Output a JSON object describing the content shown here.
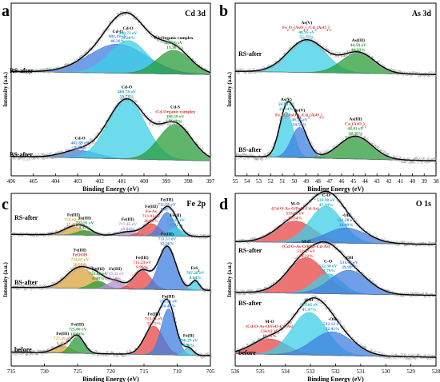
{
  "chart_data": [
    {
      "type": "area",
      "panel": "a",
      "element": "Cd 3d",
      "xlabel": "Binding Energy (eV)",
      "ylabel": "Intensity (a.u.)",
      "xlim": [
        406,
        397
      ],
      "x_ticks": [
        "406",
        "405",
        "404",
        "403",
        "402",
        "401",
        "400",
        "399",
        "398",
        "397"
      ],
      "stacks": [
        {
          "name": "RS-after",
          "peaks": [
            {
              "label": "Cd-O",
              "energy": "401.19 eV",
              "share": "46.26%",
              "center": 401.19,
              "height": 0.55,
              "width": 1.3,
              "color": "#3f7fe0"
            },
            {
              "label": "Cd-O",
              "energy": "400.72 eV",
              "share": "34.20%",
              "center": 400.72,
              "height": 0.62,
              "width": 0.85,
              "color": "#3ccfe6"
            },
            {
              "label": "Cd-Organic complex",
              "energy": "398.66 eV",
              "share": "19.36%",
              "center": 398.66,
              "height": 0.45,
              "width": 0.75,
              "color": "#2a9e3a"
            }
          ]
        },
        {
          "name": "BS-after",
          "peaks": [
            {
              "label": "Cd-O",
              "energy": "402.89 eV",
              "share": "7.45%",
              "center": 402.89,
              "height": 0.1,
              "width": 0.8,
              "color": "#3f7fe0"
            },
            {
              "label": "Cd-O",
              "energy": "400.78 eV",
              "share": "50.77%",
              "center": 400.78,
              "height": 0.8,
              "width": 0.85,
              "color": "#3ccfe6"
            },
            {
              "label": "Cd-S",
              "label2": "/Cd-Organic complex",
              "energy": "398.59 eV",
              "share": "41.78%",
              "center": 398.59,
              "height": 0.48,
              "width": 0.75,
              "color": "#2a9e3a"
            }
          ]
        }
      ]
    },
    {
      "type": "area",
      "panel": "b",
      "element": "As 3d",
      "xlabel": "Binding Energy (eV)",
      "ylabel": "Intensity (a.u.)",
      "xlim": [
        55,
        38
      ],
      "x_ticks": [
        "55",
        "54",
        "53",
        "52",
        "51",
        "50",
        "49",
        "48",
        "47",
        "46",
        "45",
        "44",
        "43",
        "42",
        "41",
        "40",
        "39",
        "38"
      ],
      "stacks": [
        {
          "name": "RS-after",
          "peaks": [
            {
              "label": "As(V)",
              "label2": "Fe2O3(AsO4)3/Cd3(AsO4)2",
              "energy": "48.95 eV",
              "share": "55.77%",
              "center": 48.95,
              "height": 0.6,
              "width": 1.6,
              "color": "#3ccfe6"
            },
            {
              "label": "As(III)",
              "energy": "44.58 eV",
              "share": "44.23%",
              "center": 44.58,
              "height": 0.38,
              "width": 1.4,
              "color": "#2a9e3a"
            }
          ]
        },
        {
          "name": "BS-after",
          "peaks": [
            {
              "label": "As(V)",
              "energy": "50.68 eV",
              "share": "21.14%",
              "center": 50.68,
              "height": 0.6,
              "width": 0.6,
              "color": "#3ccfe6"
            },
            {
              "label": "As(V)",
              "label2": "Fe2O3(AsO4)3/Cd3(AsO4)2",
              "energy": "49.55 eV",
              "share": "24.50%",
              "center": 49.55,
              "height": 0.4,
              "width": 0.7,
              "color": "#3f7fe0"
            },
            {
              "label": "As(III)",
              "label2": "Ca3(AsO3)2",
              "energy": "44.81 eV",
              "share": "54.35%",
              "center": 44.81,
              "height": 0.3,
              "width": 1.4,
              "color": "#2a9e3a"
            }
          ]
        }
      ]
    },
    {
      "type": "area",
      "panel": "c",
      "element": "Fe 2p",
      "xlabel": "Binding Energy (eV)",
      "ylabel": "Intensity (a.u.)",
      "xlim": [
        735,
        705
      ],
      "x_ticks": [
        "735",
        "730",
        "725",
        "720",
        "715",
        "710",
        "705"
      ],
      "stacks": [
        {
          "name": "RS-after",
          "peaks": [
            {
              "label": "Fe(III)",
              "energy": "725.62 eV",
              "share": "15.45%",
              "center": 725.62,
              "height": 0.2,
              "width": 1.6,
              "color": "#d9a43a"
            },
            {
              "label": "Fe(III)",
              "energy": "723.91 eV",
              "share": "8.41%",
              "center": 723.91,
              "height": 0.12,
              "width": 1.2,
              "color": "#2a9e3a"
            },
            {
              "label": "Fe(III)",
              "energy": "717.45 eV",
              "share": "10.04%",
              "center": 717.45,
              "height": 0.1,
              "width": 1.4,
              "color": "#b68fdc"
            },
            {
              "label": "Fe(III)",
              "label2": "Fe-As",
              "energy": "713.91 eV",
              "share": "26.08%",
              "center": 713.91,
              "height": 0.32,
              "width": 1.3,
              "color": "#e84545"
            },
            {
              "label": "Fe(III)",
              "energy": "711.56 eV",
              "share": "9.85%",
              "center": 711.56,
              "height": 0.62,
              "width": 1.1,
              "color": "#3f7fe0"
            },
            {
              "label": "Fe(II)",
              "energy": "710.24 eV",
              "share": "21.92%",
              "center": 710.24,
              "height": 0.22,
              "width": 1.0,
              "color": "#3ccfe6"
            }
          ]
        },
        {
          "name": "BS-after",
          "peaks": [
            {
              "label": "Fe(III)",
              "label2": "FeOOH",
              "energy": "724.65 eV",
              "share": "26.08%",
              "center": 724.65,
              "height": 0.4,
              "width": 2.0,
              "color": "#d9a43a"
            },
            {
              "label": "Fe(III)",
              "energy": "721.89 eV",
              "share": "8.00%",
              "center": 721.89,
              "height": 0.14,
              "width": 1.2,
              "color": "#2a9e3a"
            },
            {
              "label": "Fe(III)",
              "energy": "719.32 eV",
              "share": "7.51%",
              "center": 719.32,
              "height": 0.14,
              "width": 1.2,
              "color": "#b68fdc"
            },
            {
              "label": "Fe(III)",
              "energy": "715.29 eV",
              "share": "9.96%",
              "center": 715.29,
              "height": 0.36,
              "width": 1.3,
              "color": "#e84545"
            },
            {
              "label": "Fe(III)",
              "energy": "711.51 eV",
              "share": "32.20%",
              "center": 711.51,
              "height": 0.82,
              "width": 1.3,
              "color": "#3f7fe0"
            },
            {
              "label": "FeS2",
              "energy": "707.28 eV",
              "share": "9.64%",
              "center": 707.28,
              "height": 0.18,
              "width": 0.6,
              "color": "#3ccfe6"
            }
          ]
        },
        {
          "name": "before",
          "peaks": [
            {
              "label": "Fe(III)",
              "energy": "727.26 eV",
              "share": "8.45%",
              "center": 727.26,
              "height": 0.12,
              "width": 1.3,
              "color": "#d9a43a"
            },
            {
              "label": "Fe(III)",
              "energy": "725.00 eV",
              "share": "11.46%",
              "center": 725.0,
              "height": 0.28,
              "width": 1.0,
              "color": "#2a9e3a"
            },
            {
              "label": "Fe(III)",
              "energy": "713.51 eV",
              "share": "33.72%",
              "center": 713.51,
              "height": 0.48,
              "width": 1.4,
              "color": "#e84545"
            },
            {
              "label": "Fe(III)",
              "energy": "711.31 eV",
              "share": "26.46%",
              "center": 711.31,
              "height": 0.78,
              "width": 1.1,
              "color": "#3f7fe0"
            },
            {
              "label": "Fe(II)",
              "energy": "708.29 eV",
              "share": "4.96%",
              "center": 708.29,
              "height": 0.12,
              "width": 0.7,
              "color": "#3ccfe6"
            }
          ]
        }
      ]
    },
    {
      "type": "area",
      "panel": "d",
      "element": "O 1s",
      "xlabel": "Binding Energy (eV)",
      "ylabel": "Intensity (a.u.)",
      "xlim": [
        536,
        528
      ],
      "x_ticks": [
        "536",
        "535",
        "534",
        "533",
        "532",
        "531",
        "530",
        "529",
        "528"
      ],
      "stacks": [
        {
          "name": "RS-after",
          "peaks": [
            {
              "label": "M-O",
              "label2": "(Cd-O-As-O/FeO-Cd-As)",
              "energy": "533.61 eV",
              "share": "28.54%",
              "center": 533.61,
              "height": 0.48,
              "width": 0.75,
              "color": "#e84545"
            },
            {
              "label": "C-O",
              "energy": "532.38 eV",
              "share": "47.39%",
              "center": 532.38,
              "height": 0.82,
              "width": 0.65,
              "color": "#3ccfe6"
            },
            {
              "label": "-OH",
              "energy": "531.58 eV",
              "share": "24.08%",
              "center": 531.58,
              "height": 0.34,
              "width": 0.8,
              "color": "#3f7fe0"
            }
          ]
        },
        {
          "name": "BS-after",
          "peaks": [
            {
              "label": "M-O",
              "label2": "(Cd-O-As-O/FeO-Cd-As)",
              "energy": "533.17 eV",
              "share": "48.22%",
              "center": 533.17,
              "height": 0.72,
              "width": 0.75,
              "color": "#e84545"
            },
            {
              "label": "C-O",
              "energy": "532.30 eV",
              "share": "21.79%",
              "center": 532.3,
              "height": 0.4,
              "width": 0.55,
              "color": "#3ccfe6"
            },
            {
              "label": "-OH",
              "energy": "531.47 eV",
              "share": "29.99%",
              "center": 531.47,
              "height": 0.48,
              "width": 0.75,
              "color": "#3f7fe0"
            }
          ]
        },
        {
          "name": "before",
          "peaks": [
            {
              "label": "M-O",
              "label2": "(Cd-O-As-O/FeO-Cd-As)",
              "energy": "534.63 eV",
              "share": "19.61%",
              "center": 534.63,
              "height": 0.26,
              "width": 0.7,
              "color": "#e84545"
            },
            {
              "label": "C-O",
              "energy": "533.05 eV",
              "share": "47.97%",
              "center": 533.05,
              "height": 0.72,
              "width": 0.7,
              "color": "#3ccfe6"
            },
            {
              "label": "-OH",
              "energy": "532.13 eV",
              "share": "32.41%",
              "center": 532.13,
              "height": 0.4,
              "width": 0.8,
              "color": "#3f7fe0"
            }
          ]
        }
      ]
    }
  ]
}
